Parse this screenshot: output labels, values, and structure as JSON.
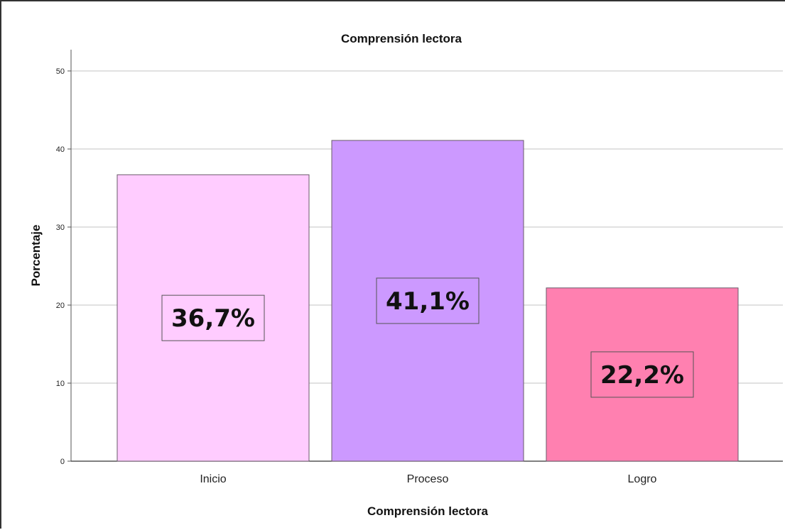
{
  "chart_data": {
    "type": "bar",
    "title": "Comprensión lectora",
    "xlabel": "Comprensión lectora",
    "ylabel": "Porcentaje",
    "categories": [
      "Inicio",
      "Proceso",
      "Logro"
    ],
    "values": [
      36.7,
      41.1,
      22.2
    ],
    "data_labels": [
      "36,7%",
      "41,1%",
      "22,2%"
    ],
    "colors": [
      "#ffccff",
      "#cc99ff",
      "#ff80b0"
    ],
    "ylim": [
      0,
      50
    ],
    "yticks": [
      "0",
      "10",
      "20",
      "30",
      "40",
      "50"
    ],
    "grid": true,
    "legend": "none"
  }
}
